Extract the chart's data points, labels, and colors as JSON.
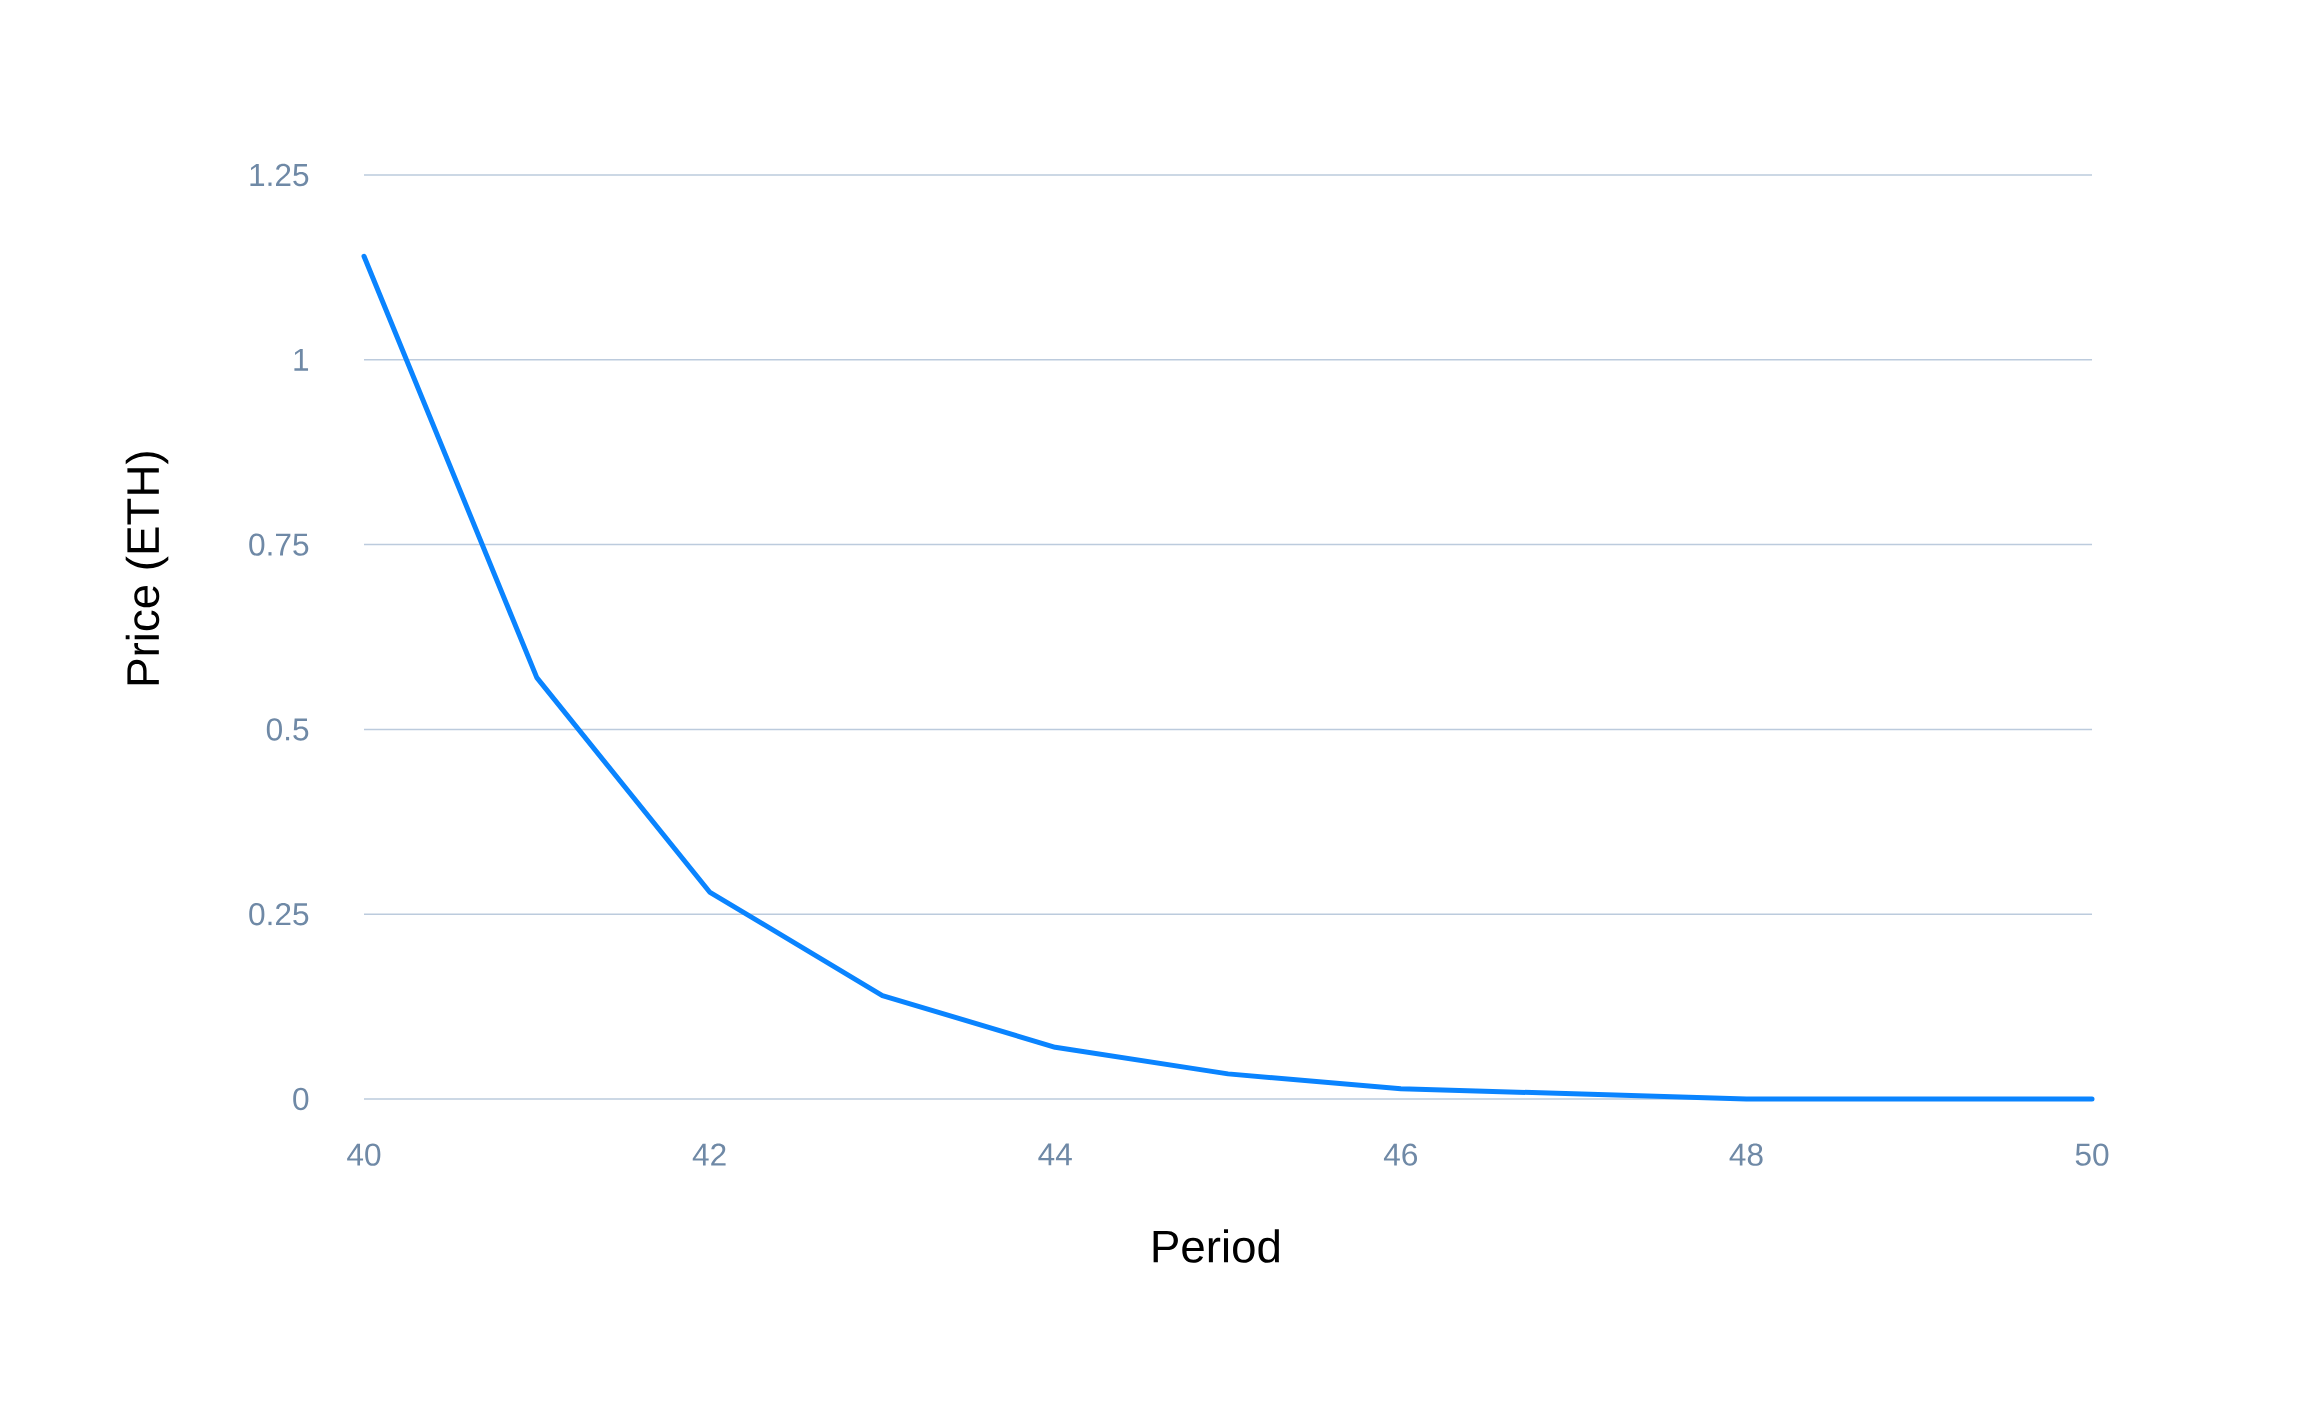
{
  "chart_data": {
    "type": "line",
    "xlabel": "Period",
    "ylabel": "Price (ETH)",
    "x": [
      40,
      41,
      42,
      43,
      44,
      45,
      46,
      47,
      48,
      49,
      50
    ],
    "series": [
      {
        "color": "#0a84ff",
        "values": [
          1.14,
          0.57,
          0.28,
          0.14,
          0.07,
          0.034,
          0.014,
          0.007,
          0,
          0,
          0
        ]
      }
    ],
    "xlim": [
      40,
      50
    ],
    "ylim": [
      0,
      1.25
    ],
    "xticks": [
      40,
      42,
      44,
      46,
      48,
      50
    ],
    "yticks": [
      0,
      0.25,
      0.5,
      0.75,
      1,
      1.25
    ],
    "grid": "y",
    "marker": "none",
    "line_style": "solid"
  }
}
